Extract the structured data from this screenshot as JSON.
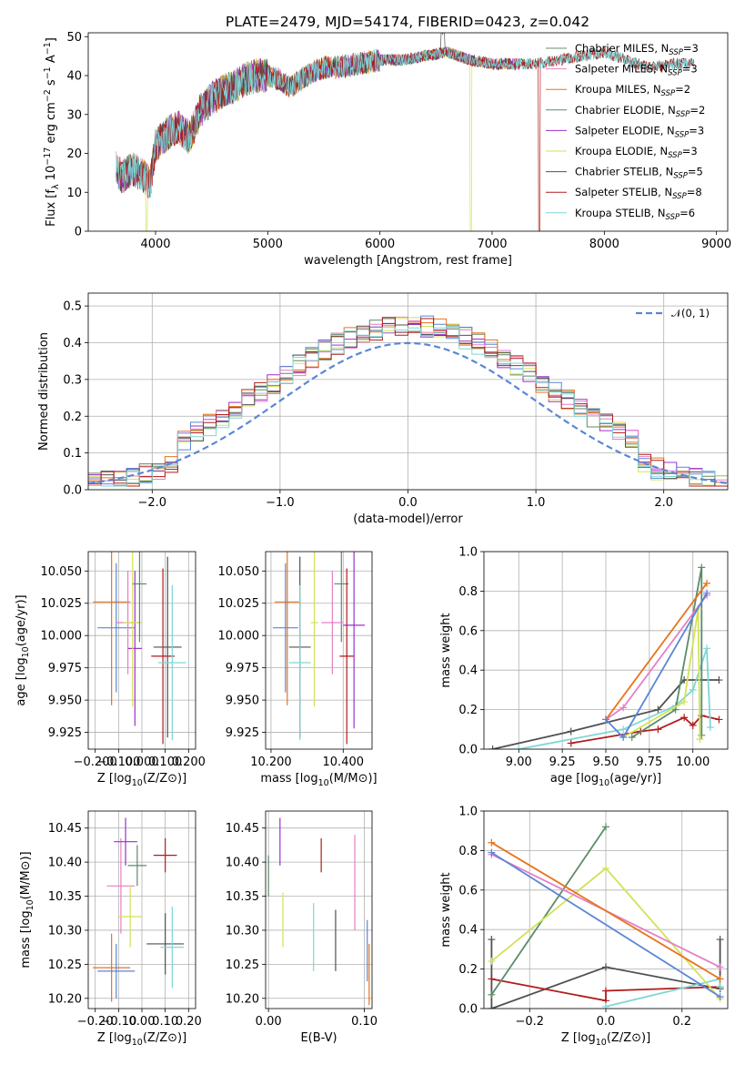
{
  "title": "PLATE=2479, MJD=54174, FIBERID=0423, z=0.042",
  "colors": {
    "chabrier_miles": "#6b8e6b",
    "salpeter_miles": "#e57fc7",
    "kroupa_miles": "#e8731a",
    "chabrier_elodie": "#5a8c6a",
    "salpeter_elodie": "#9b30c8",
    "kroupa_elodie": "#d4e157",
    "chabrier_stelib": "#505050",
    "salpeter_stelib": "#b21b1b",
    "kroupa_stelib": "#7fd6d6",
    "blue": "#5b86d6"
  },
  "legend_spectrum": [
    {
      "label": "Chabrier MILES, N",
      "sub": "SSP",
      "n": "=3",
      "color": "#6b8e6b"
    },
    {
      "label": "Salpeter MILES, N",
      "sub": "SSP",
      "n": "=3",
      "color": "#e57fc7"
    },
    {
      "label": "Kroupa MILES, N",
      "sub": "SSP",
      "n": "=2",
      "color": "#e8731a"
    },
    {
      "label": "Chabrier ELODIE, N",
      "sub": "SSP",
      "n": "=2",
      "color": "#5a8c6a"
    },
    {
      "label": "Salpeter ELODIE, N",
      "sub": "SSP",
      "n": "=3",
      "color": "#9b30c8"
    },
    {
      "label": "Kroupa ELODIE, N",
      "sub": "SSP",
      "n": "=3",
      "color": "#d4e157"
    },
    {
      "label": "Chabrier STELIB, N",
      "sub": "SSP",
      "n": "=5",
      "color": "#505050"
    },
    {
      "label": "Salpeter STELIB, N",
      "sub": "SSP",
      "n": "=8",
      "color": "#b21b1b"
    },
    {
      "label": "Kroupa STELIB, N",
      "sub": "SSP",
      "n": "=6",
      "color": "#7fd6d6"
    }
  ],
  "legend_hist": {
    "label": "𝒩(0, 1)"
  },
  "chart_data": [
    {
      "type": "line",
      "panel": "spectrum",
      "xlabel": "wavelength [Angstrom, rest frame]",
      "ylabel": "Flux [f_λ 10^-17 erg cm^-2 s^-1 A^-1]",
      "xlim": [
        3400,
        9100
      ],
      "ylim": [
        0,
        51
      ],
      "xticks": [
        4000,
        5000,
        6000,
        7000,
        8000,
        9000
      ],
      "yticks": [
        0,
        10,
        20,
        30,
        40,
        50
      ],
      "continuum": {
        "x": [
          3650,
          3700,
          3800,
          3900,
          3950,
          4000,
          4100,
          4200,
          4300,
          4400,
          4500,
          4600,
          4700,
          4800,
          4900,
          5000,
          5100,
          5200,
          5300,
          5400,
          5500,
          5600,
          5800,
          6000,
          6200,
          6400,
          6600,
          6800,
          7000,
          7200,
          7400,
          7600,
          7800,
          8000,
          8200,
          8400,
          8600,
          8800
        ],
        "y": [
          16,
          14,
          16,
          14,
          12,
          22,
          25,
          27,
          24,
          31,
          34,
          36,
          37,
          39,
          40,
          40,
          39,
          37,
          39,
          41,
          42,
          42,
          43,
          44,
          44,
          45,
          46,
          44,
          43,
          43,
          43,
          44,
          45,
          46,
          44,
          42,
          43,
          43
        ]
      },
      "dropouts": [
        {
          "series": "Kroupa ELODIE",
          "x": 3920
        },
        {
          "series": "Kroupa ELODIE",
          "x": 6810
        },
        {
          "series": "Salpeter STELIB",
          "x": 7420
        }
      ]
    },
    {
      "type": "area",
      "panel": "residual histogram",
      "xlabel": "(data-model)/error",
      "ylabel": "Normed distribution",
      "xlim": [
        -2.5,
        2.5
      ],
      "ylim": [
        0,
        0.535
      ],
      "xticks": [
        -2,
        -1,
        0,
        1,
        2
      ],
      "yticks": [
        0.0,
        0.1,
        0.2,
        0.3,
        0.4,
        0.5
      ],
      "bin_width": 0.1,
      "reference": {
        "name": "𝒩(0, 1)",
        "mean": 0,
        "sigma": 1
      }
    },
    {
      "type": "scatter",
      "panel": "age vs Z",
      "xlabel": "Z [log10(Z/Z⊙)]",
      "ylabel": "age [log10(age/yr)]",
      "xlim": [
        -0.23,
        0.23
      ],
      "ylim": [
        9.912,
        10.065
      ],
      "xticks": [
        -0.2,
        -0.1,
        0.0,
        0.1,
        0.2
      ],
      "yticks": [
        9.925,
        9.95,
        9.975,
        10.0,
        10.025,
        10.05
      ],
      "points": [
        {
          "s": "kroupa_miles",
          "x": -0.13,
          "y": 10.026,
          "xe": 0.08,
          "ye": 0.08
        },
        {
          "s": "blue",
          "x": -0.11,
          "y": 10.006,
          "xe": 0.08,
          "ye": 0.05
        },
        {
          "s": "salpeter_miles",
          "x": -0.06,
          "y": 10.01,
          "xe": 0.05,
          "ye": 0.04
        },
        {
          "s": "salpeter_elodie",
          "x": -0.03,
          "y": 9.99,
          "xe": 0.03,
          "ye": 0.06
        },
        {
          "s": "kroupa_elodie",
          "x": -0.04,
          "y": 10.01,
          "xe": 0.04,
          "ye": 0.065
        },
        {
          "s": "chabrier_elodie",
          "x": -0.01,
          "y": 10.04,
          "xe": 0.03,
          "ye": 0.045
        },
        {
          "s": "salpeter_stelib",
          "x": 0.09,
          "y": 9.984,
          "xe": 0.05,
          "ye": 0.068
        },
        {
          "s": "chabrier_stelib",
          "x": 0.11,
          "y": 9.991,
          "xe": 0.06,
          "ye": 0.07
        },
        {
          "s": "kroupa_stelib",
          "x": 0.13,
          "y": 9.979,
          "xe": 0.06,
          "ye": 0.06
        }
      ]
    },
    {
      "type": "scatter",
      "panel": "age vs mass",
      "xlabel": "mass [log10(M/M⊙)]",
      "ylabel": "",
      "xlim": [
        10.185,
        10.48
      ],
      "ylim": [
        9.912,
        10.065
      ],
      "xticks": [
        10.2,
        10.4
      ],
      "yticks": [
        9.925,
        9.95,
        9.975,
        10.0,
        10.025,
        10.05
      ],
      "points": [
        {
          "s": "kroupa_miles",
          "x": 10.245,
          "y": 10.026,
          "xe": 0.035,
          "ye": 0.08
        },
        {
          "s": "blue",
          "x": 10.24,
          "y": 10.006,
          "xe": 0.035,
          "ye": 0.05
        },
        {
          "s": "chabrier_stelib",
          "x": 10.28,
          "y": 9.991,
          "xe": 0.03,
          "ye": 0.07
        },
        {
          "s": "kroupa_stelib",
          "x": 10.28,
          "y": 9.979,
          "xe": 0.03,
          "ye": 0.06
        },
        {
          "s": "kroupa_elodie",
          "x": 10.32,
          "y": 10.01,
          "xe": 0.01,
          "ye": 0.065
        },
        {
          "s": "chabrier_elodie",
          "x": 10.395,
          "y": 10.04,
          "xe": 0.02,
          "ye": 0.045
        },
        {
          "s": "salpeter_miles",
          "x": 10.37,
          "y": 10.01,
          "xe": 0.03,
          "ye": 0.04
        },
        {
          "s": "salpeter_stelib",
          "x": 10.41,
          "y": 9.984,
          "xe": 0.02,
          "ye": 0.068
        },
        {
          "s": "salpeter_elodie",
          "x": 10.43,
          "y": 10.008,
          "xe": 0.03,
          "ye": 0.08
        }
      ]
    },
    {
      "type": "line",
      "panel": "mass weight vs age",
      "xlabel": "age [log10(age/yr)]",
      "ylabel": "mass weight",
      "xlim": [
        8.8,
        10.2
      ],
      "ylim": [
        0,
        1
      ],
      "xticks": [
        9.0,
        9.25,
        9.5,
        9.75,
        10.0
      ],
      "yticks": [
        0.0,
        0.2,
        0.4,
        0.6,
        0.8,
        1.0
      ],
      "series": [
        {
          "s": "chabrier_stelib",
          "x": [
            8.85,
            9.3,
            9.8,
            9.95,
            10.15
          ],
          "y": [
            0.0,
            0.09,
            0.2,
            0.35,
            0.35
          ]
        },
        {
          "s": "salpeter_stelib",
          "x": [
            9.3,
            9.7,
            9.8,
            9.95,
            10.0,
            10.05,
            10.15
          ],
          "y": [
            0.03,
            0.09,
            0.1,
            0.16,
            0.12,
            0.17,
            0.15
          ]
        },
        {
          "s": "kroupa_stelib",
          "x": [
            9.0,
            9.6,
            9.9,
            10.0,
            10.08,
            10.1
          ],
          "y": [
            0.0,
            0.1,
            0.22,
            0.3,
            0.51,
            0.11
          ]
        },
        {
          "s": "chabrier_elodie",
          "x": [
            9.65,
            9.9,
            10.05,
            10.05
          ],
          "y": [
            0.06,
            0.2,
            0.92,
            0.07
          ]
        },
        {
          "s": "kroupa_elodie",
          "x": [
            9.6,
            9.95,
            10.03,
            10.04
          ],
          "y": [
            0.06,
            0.24,
            0.71,
            0.05
          ]
        },
        {
          "s": "salpeter_miles",
          "x": [
            9.5,
            9.6,
            10.08
          ],
          "y": [
            0.15,
            0.21,
            0.78
          ]
        },
        {
          "s": "kroupa_miles",
          "x": [
            9.5,
            10.08
          ],
          "y": [
            0.15,
            0.84
          ]
        },
        {
          "s": "blue",
          "x": [
            9.5,
            9.6,
            10.08
          ],
          "y": [
            0.15,
            0.06,
            0.79
          ]
        }
      ]
    },
    {
      "type": "scatter",
      "panel": "mass vs Z",
      "xlabel": "Z [log10(Z/Z⊙)]",
      "ylabel": "mass [log10(M/M⊙)]",
      "xlim": [
        -0.23,
        0.23
      ],
      "ylim": [
        10.185,
        10.475
      ],
      "xticks": [
        -0.2,
        -0.1,
        0.0,
        0.1,
        0.2
      ],
      "yticks": [
        10.2,
        10.25,
        10.3,
        10.35,
        10.4,
        10.45
      ],
      "points": [
        {
          "s": "kroupa_miles",
          "x": -0.13,
          "y": 10.245,
          "xe": 0.08,
          "ye": 0.05
        },
        {
          "s": "blue",
          "x": -0.11,
          "y": 10.24,
          "xe": 0.08,
          "ye": 0.04
        },
        {
          "s": "salpeter_miles",
          "x": -0.09,
          "y": 10.365,
          "xe": 0.06,
          "ye": 0.07
        },
        {
          "s": "salpeter_elodie",
          "x": -0.07,
          "y": 10.43,
          "xe": 0.05,
          "ye": 0.035
        },
        {
          "s": "kroupa_elodie",
          "x": -0.05,
          "y": 10.32,
          "xe": 0.05,
          "ye": 0.045
        },
        {
          "s": "chabrier_elodie",
          "x": -0.02,
          "y": 10.395,
          "xe": 0.04,
          "ye": 0.03
        },
        {
          "s": "salpeter_stelib",
          "x": 0.1,
          "y": 10.41,
          "xe": 0.05,
          "ye": 0.025
        },
        {
          "s": "chabrier_stelib",
          "x": 0.1,
          "y": 10.28,
          "xe": 0.08,
          "ye": 0.045
        },
        {
          "s": "kroupa_stelib",
          "x": 0.13,
          "y": 10.275,
          "xe": 0.05,
          "ye": 0.06
        }
      ]
    },
    {
      "type": "scatter",
      "panel": "mass vs E(B-V)",
      "xlabel": "E(B-V)",
      "ylabel": "",
      "xlim": [
        -0.003,
        0.108
      ],
      "ylim": [
        10.185,
        10.475
      ],
      "xticks": [
        0.0,
        0.1
      ],
      "yticks": [
        10.2,
        10.25,
        10.3,
        10.35,
        10.4,
        10.45
      ],
      "points": [
        {
          "s": "chabrier_elodie",
          "x": 0.0,
          "y": 10.38,
          "ye": 0.03
        },
        {
          "s": "salpeter_elodie",
          "x": 0.012,
          "y": 10.43,
          "ye": 0.035
        },
        {
          "s": "kroupa_elodie",
          "x": 0.015,
          "y": 10.315,
          "ye": 0.04
        },
        {
          "s": "kroupa_stelib",
          "x": 0.047,
          "y": 10.29,
          "ye": 0.05
        },
        {
          "s": "salpeter_stelib",
          "x": 0.055,
          "y": 10.41,
          "ye": 0.025
        },
        {
          "s": "chabrier_stelib",
          "x": 0.07,
          "y": 10.285,
          "ye": 0.045
        },
        {
          "s": "salpeter_miles",
          "x": 0.09,
          "y": 10.37,
          "ye": 0.07
        },
        {
          "s": "blue",
          "x": 0.103,
          "y": 10.27,
          "ye": 0.045
        },
        {
          "s": "kroupa_miles",
          "x": 0.105,
          "y": 10.235,
          "ye": 0.045
        }
      ]
    },
    {
      "type": "line",
      "panel": "mass weight vs Z",
      "xlabel": "Z [log10(Z/Z⊙)]",
      "ylabel": "mass weight",
      "xlim": [
        -0.32,
        0.32
      ],
      "ylim": [
        0,
        1
      ],
      "xticks": [
        -0.2,
        0.0,
        0.2
      ],
      "yticks": [
        0.0,
        0.2,
        0.4,
        0.6,
        0.8,
        1.0
      ],
      "series": [
        {
          "s": "chabrier_stelib",
          "x": [
            -0.3,
            -0.3,
            0.0,
            0.3,
            0.3
          ],
          "y": [
            0.35,
            0.0,
            0.21,
            0.1,
            0.35
          ]
        },
        {
          "s": "salpeter_stelib",
          "x": [
            -0.3,
            0.0,
            0.0,
            0.3
          ],
          "y": [
            0.15,
            0.04,
            0.09,
            0.11
          ]
        },
        {
          "s": "kroupa_stelib",
          "x": [
            0.0,
            0.3,
            0.3
          ],
          "y": [
            0.01,
            0.15,
            0.11
          ]
        },
        {
          "s": "chabrier_elodie",
          "x": [
            -0.3,
            0.0
          ],
          "y": [
            0.07,
            0.92
          ]
        },
        {
          "s": "kroupa_elodie",
          "x": [
            -0.3,
            0.0,
            0.3
          ],
          "y": [
            0.24,
            0.71,
            0.05
          ]
        },
        {
          "s": "salpeter_miles",
          "x": [
            -0.3,
            0.3
          ],
          "y": [
            0.78,
            0.21
          ]
        },
        {
          "s": "kroupa_miles",
          "x": [
            -0.3,
            0.3
          ],
          "y": [
            0.84,
            0.15
          ]
        },
        {
          "s": "blue",
          "x": [
            -0.3,
            0.3
          ],
          "y": [
            0.79,
            0.06
          ]
        }
      ]
    }
  ]
}
